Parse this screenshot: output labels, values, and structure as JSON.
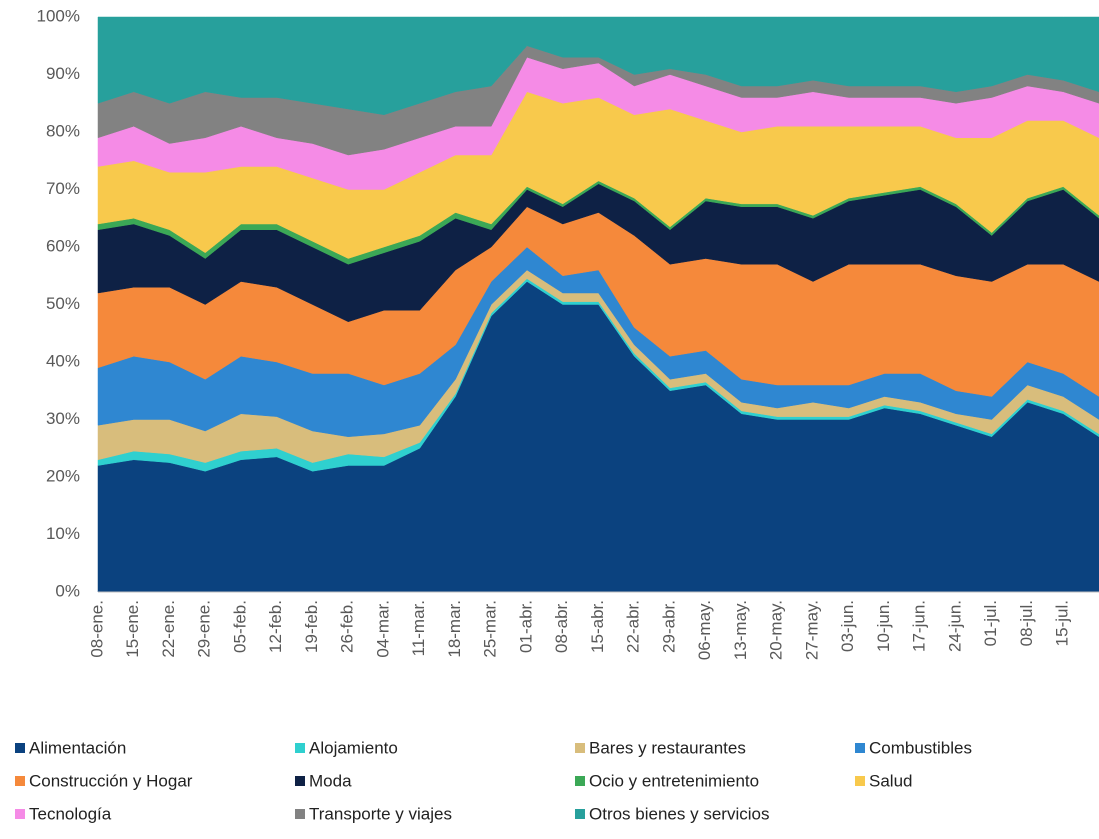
{
  "chart_data": {
    "type": "stacked_area",
    "categories": [
      "08-ene.",
      "15-ene.",
      "22-ene.",
      "29-ene.",
      "05-feb.",
      "12-feb.",
      "19-feb.",
      "26-feb.",
      "04-mar.",
      "11-mar.",
      "18-mar.",
      "25-mar.",
      "01-abr.",
      "08-abr.",
      "15-abr.",
      "22-abr.",
      "29-abr.",
      "06-may.",
      "13-may.",
      "20-may.",
      "27-may.",
      "03-jun.",
      "10-jun.",
      "17-jun.",
      "24-jun.",
      "01-jul.",
      "08-jul.",
      "15-jul.",
      null
    ],
    "ylim": [
      0,
      100
    ],
    "yticks": [
      {
        "value": 0,
        "label": "0%"
      },
      {
        "value": 10,
        "label": "10%"
      },
      {
        "value": 20,
        "label": "20%"
      },
      {
        "value": 30,
        "label": "30%"
      },
      {
        "value": 40,
        "label": "40%"
      },
      {
        "value": 50,
        "label": "50%"
      },
      {
        "value": 60,
        "label": "60%"
      },
      {
        "value": 70,
        "label": "70%"
      },
      {
        "value": 80,
        "label": "80%"
      },
      {
        "value": 90,
        "label": "90%"
      },
      {
        "value": 100,
        "label": "100%"
      }
    ],
    "series": [
      {
        "name": "Alimentación",
        "color": "#0b427f",
        "values": [
          22,
          23,
          22.5,
          21,
          23,
          23.5,
          21,
          22,
          22,
          25,
          34,
          48,
          54,
          50,
          50,
          41,
          35,
          36,
          31,
          30,
          30,
          30,
          32,
          31,
          29,
          27,
          33,
          31,
          27
        ]
      },
      {
        "name": "Alojamiento",
        "color": "#2fd0cf",
        "values": [
          1,
          1.5,
          1.5,
          1.5,
          1.5,
          1.5,
          1.5,
          2,
          1.5,
          1,
          0.5,
          0.5,
          0.5,
          0.5,
          0.5,
          0.5,
          0.5,
          0.5,
          0.5,
          0.5,
          0.5,
          0.5,
          0.5,
          0.5,
          0.5,
          0.5,
          0.5,
          0.5,
          0.5
        ]
      },
      {
        "name": "Bares y restaurantes",
        "color": "#d8bd7c",
        "values": [
          6,
          5.5,
          6,
          5.5,
          6.5,
          5.5,
          5.5,
          3,
          4,
          3,
          2.5,
          1.5,
          1.5,
          1.5,
          1.5,
          1.5,
          1.5,
          1.5,
          1.5,
          1.5,
          2.5,
          1.5,
          1.5,
          1.5,
          1.5,
          2.5,
          2.5,
          2.5,
          2.5
        ]
      },
      {
        "name": "Combustibles",
        "color": "#2f87d1",
        "values": [
          10,
          11,
          10,
          9,
          10,
          9.5,
          10,
          11,
          8.5,
          9,
          6,
          4,
          4,
          3,
          4,
          3,
          4,
          4,
          4,
          4,
          3,
          4,
          4,
          5,
          4,
          4,
          4,
          4,
          4
        ]
      },
      {
        "name": "Construcción y Hogar",
        "color": "#f5893b",
        "values": [
          13,
          12,
          13,
          13,
          13,
          13,
          12,
          9,
          13,
          11,
          13,
          6,
          7,
          9,
          10,
          16,
          16,
          16,
          20,
          21,
          18,
          21,
          19,
          19,
          20,
          20,
          17,
          19,
          20
        ]
      },
      {
        "name": "Moda",
        "color": "#0e2145",
        "values": [
          11,
          11,
          9,
          8,
          9,
          10,
          10,
          10,
          10,
          12,
          9,
          3,
          3,
          3,
          5,
          6,
          6,
          10,
          10,
          10,
          11,
          11,
          12,
          13,
          12,
          8,
          11,
          13,
          11
        ]
      },
      {
        "name": "Ocio y entretenimiento",
        "color": "#3ba856",
        "values": [
          1,
          1,
          1,
          1,
          1,
          1,
          1,
          1,
          1,
          1,
          1,
          1,
          0.5,
          0.5,
          0.5,
          0.5,
          0.5,
          0.5,
          0.5,
          0.5,
          0.5,
          0.5,
          0.5,
          0.5,
          0.5,
          0.5,
          0.5,
          0.5,
          0.5
        ]
      },
      {
        "name": "Salud",
        "color": "#f8c94c",
        "values": [
          10,
          10,
          10,
          14,
          10,
          10,
          11,
          12,
          10,
          11,
          10,
          12,
          16.5,
          17.5,
          14.5,
          14.5,
          20.5,
          13.5,
          12.5,
          13.5,
          15.5,
          12.5,
          11.5,
          10.5,
          11.5,
          16.5,
          13.5,
          11.5,
          13.5
        ]
      },
      {
        "name": "Tecnología",
        "color": "#f58be6",
        "values": [
          5,
          6,
          5,
          6,
          7,
          5,
          6,
          6,
          7,
          6,
          5,
          5,
          6,
          6,
          6,
          5,
          6,
          6,
          6,
          5,
          6,
          5,
          5,
          5,
          6,
          7,
          6,
          5,
          6
        ]
      },
      {
        "name": "Transporte y viajes",
        "color": "#828282",
        "values": [
          6,
          6,
          7,
          8,
          5,
          7,
          7,
          8,
          6,
          6,
          6,
          7,
          2,
          2,
          1,
          2,
          1,
          2,
          2,
          2,
          2,
          2,
          2,
          2,
          2,
          2,
          2,
          2,
          2
        ]
      },
      {
        "name": "Otros bienes y servicios",
        "color": "#27a09c",
        "values": [
          15,
          13,
          15,
          13,
          14,
          14,
          15,
          16,
          17,
          15,
          13,
          12,
          5,
          7,
          7,
          10,
          9,
          10,
          12,
          12,
          11,
          12,
          12,
          12,
          13,
          12,
          10,
          11,
          13
        ]
      }
    ]
  }
}
